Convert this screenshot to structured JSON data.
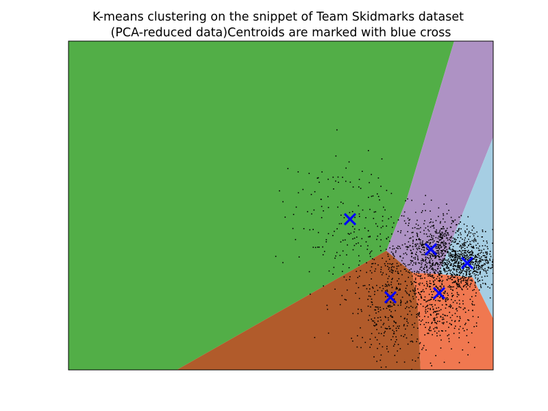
{
  "chart_data": {
    "type": "scatter",
    "title_lines": [
      "K-means clustering on the snippet of Team Skidmarks dataset",
      "(PCA-reduced data)Centroids are marked with blue cross"
    ],
    "xlabel": "",
    "ylabel": "",
    "xticks": [],
    "yticks": [],
    "grid": false,
    "legend": null,
    "region_colors": [
      "#52ae47",
      "#b15b2b",
      "#f07850",
      "#ae92c4",
      "#a6cee3"
    ],
    "data_point_color": "#000000",
    "centroid_color": "#0000ff",
    "centroids": [
      {
        "x": 511,
        "y": 320
      },
      {
        "x": 570,
        "y": 434
      },
      {
        "x": 629,
        "y": 364
      },
      {
        "x": 641,
        "y": 428
      },
      {
        "x": 682,
        "y": 384
      }
    ],
    "point_clusters": [
      {
        "center": [
          505,
          320
        ],
        "spread": [
          45,
          50
        ],
        "count": 160
      },
      {
        "center": [
          570,
          440
        ],
        "spread": [
          32,
          45
        ],
        "count": 380
      },
      {
        "center": [
          635,
          360
        ],
        "spread": [
          32,
          24
        ],
        "count": 600
      },
      {
        "center": [
          640,
          430
        ],
        "spread": [
          26,
          38
        ],
        "count": 450
      },
      {
        "center": [
          680,
          385
        ],
        "spread": [
          22,
          18
        ],
        "count": 550
      }
    ]
  }
}
